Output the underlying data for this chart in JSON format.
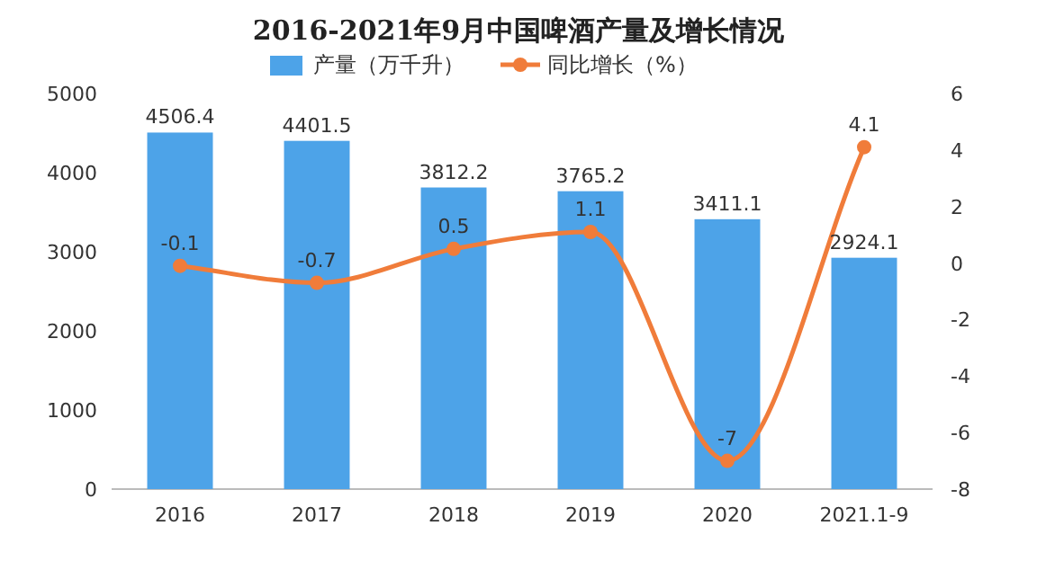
{
  "chart_data": {
    "type": "bar",
    "title": "2016-2021年9月中国啤酒产量及增长情况",
    "categories": [
      "2016",
      "2017",
      "2018",
      "2019",
      "2020",
      "2021.1-9"
    ],
    "series": [
      {
        "name": "产量（万千升）",
        "color": "#4da3e8",
        "values": [
          4506.4,
          4401.5,
          3812.2,
          3765.2,
          3411.1,
          2924.1
        ]
      },
      {
        "name": "同比增长（%）",
        "type": "line",
        "axis": "y2",
        "color": "#f07c3a",
        "marker": "circle",
        "values": [
          -0.1,
          -0.7,
          0.5,
          1.1,
          -7,
          4.1
        ]
      }
    ],
    "ylim": [
      0,
      5000
    ],
    "yticks": [
      0,
      1000,
      2000,
      3000,
      4000,
      5000
    ],
    "y2lim": [
      -8,
      6
    ],
    "y2ticks": [
      -8,
      -6,
      -4,
      -2,
      0,
      2,
      4,
      6
    ],
    "data_labels": true,
    "legend": "top",
    "grid": false
  }
}
